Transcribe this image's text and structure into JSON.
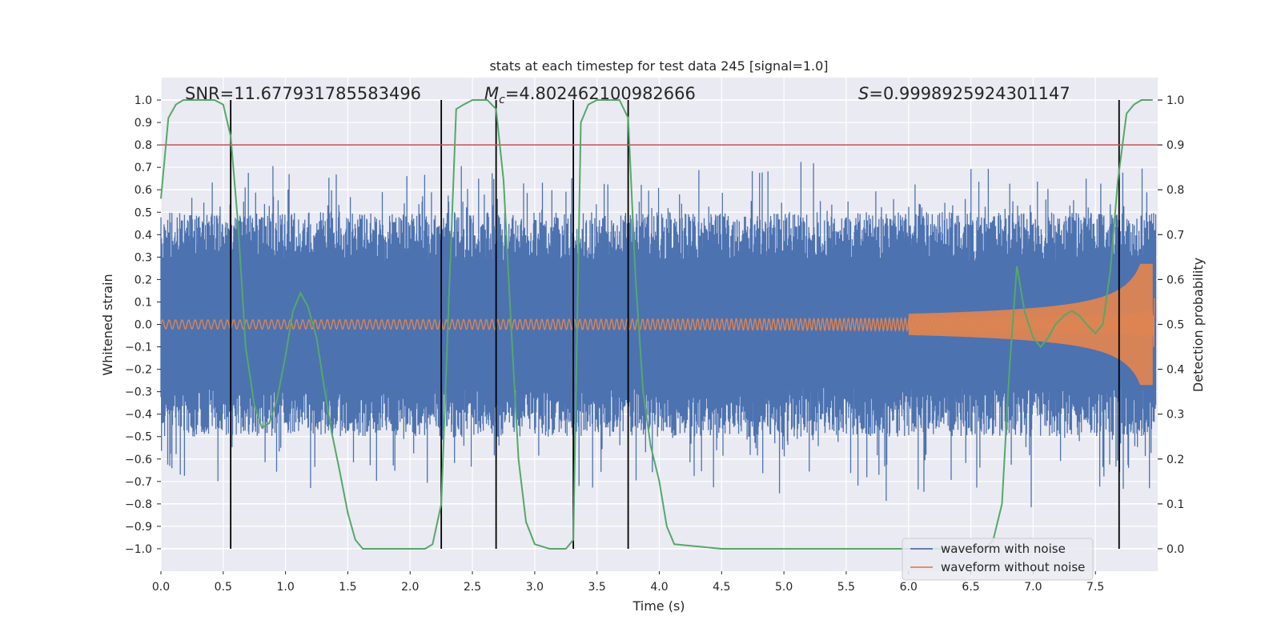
{
  "chart_data": {
    "type": "line",
    "title": "stats at each timestep for test data 245 [signal=1.0]",
    "xlabel": "Time (s)",
    "ylabel": "Whitened strain",
    "y2label": "Detection probability",
    "xlim": [
      0,
      8
    ],
    "ylim": [
      -1.1,
      1.1
    ],
    "y2lim": [
      -0.05,
      1.05
    ],
    "x_ticks": [
      "0.0",
      "0.5",
      "1.0",
      "1.5",
      "2.0",
      "2.5",
      "3.0",
      "3.5",
      "4.0",
      "4.5",
      "5.0",
      "5.5",
      "6.0",
      "6.5",
      "7.0",
      "7.5"
    ],
    "x_tick_values": [
      0,
      0.5,
      1,
      1.5,
      2,
      2.5,
      3,
      3.5,
      4,
      4.5,
      5,
      5.5,
      6,
      6.5,
      7,
      7.5
    ],
    "y_ticks": [
      "1.0",
      "0.9",
      "0.8",
      "0.7",
      "0.6",
      "0.5",
      "0.4",
      "0.3",
      "0.2",
      "0.1",
      "0.0",
      "−0.1",
      "−0.2",
      "−0.3",
      "−0.4",
      "−0.5",
      "−0.6",
      "−0.7",
      "−0.8",
      "−0.9",
      "−1.0"
    ],
    "y_tick_values": [
      1.0,
      0.9,
      0.8,
      0.7,
      0.6,
      0.5,
      0.4,
      0.3,
      0.2,
      0.1,
      0.0,
      -0.1,
      -0.2,
      -0.3,
      -0.4,
      -0.5,
      -0.6,
      -0.7,
      -0.8,
      -0.9,
      -1.0
    ],
    "y2_ticks": [
      "1.0",
      "0.9",
      "0.8",
      "0.7",
      "0.6",
      "0.5",
      "0.4",
      "0.3",
      "0.2",
      "0.1",
      "0.0"
    ],
    "y2_tick_values": [
      1.0,
      0.9,
      0.8,
      0.7,
      0.6,
      0.5,
      0.4,
      0.3,
      0.2,
      0.1,
      0.0
    ],
    "annotations": {
      "snr": "SNR=11.677931785583496",
      "mc_symbol": "M",
      "mc_sub": "c",
      "mc_value": "=4.802462100982666",
      "s_symbol": "S",
      "s_value": "=0.9998925924301147"
    },
    "threshold": 0.9,
    "vertical_lines_x": [
      0.56,
      2.25,
      2.69,
      3.31,
      3.75,
      7.69
    ],
    "detection_probability": {
      "x": [
        0.0,
        0.06,
        0.12,
        0.18,
        0.25,
        0.31,
        0.37,
        0.43,
        0.5,
        0.56,
        0.62,
        0.68,
        0.75,
        0.81,
        0.87,
        0.93,
        1.0,
        1.06,
        1.12,
        1.18,
        1.25,
        1.31,
        1.37,
        1.43,
        1.5,
        1.56,
        1.62,
        1.68,
        1.75,
        2.0,
        2.12,
        2.18,
        2.25,
        2.31,
        2.37,
        2.43,
        2.5,
        2.62,
        2.69,
        2.75,
        2.81,
        2.87,
        2.93,
        3.0,
        3.12,
        3.25,
        3.31,
        3.37,
        3.43,
        3.5,
        3.62,
        3.68,
        3.75,
        3.81,
        3.87,
        3.93,
        4.0,
        4.06,
        4.12,
        4.5,
        5.0,
        5.5,
        6.0,
        6.5,
        6.62,
        6.68,
        6.75,
        6.81,
        6.87,
        6.93,
        7.0,
        7.06,
        7.12,
        7.18,
        7.25,
        7.31,
        7.37,
        7.43,
        7.5,
        7.56,
        7.62,
        7.68,
        7.75,
        7.81,
        7.87,
        7.96
      ],
      "y": [
        0.78,
        0.96,
        0.99,
        1.0,
        1.0,
        1.0,
        1.0,
        1.0,
        0.99,
        0.92,
        0.72,
        0.45,
        0.32,
        0.27,
        0.28,
        0.33,
        0.43,
        0.53,
        0.57,
        0.54,
        0.47,
        0.36,
        0.26,
        0.18,
        0.08,
        0.02,
        0.0,
        0.0,
        0.0,
        0.0,
        0.0,
        0.01,
        0.1,
        0.55,
        0.98,
        0.99,
        1.0,
        1.0,
        0.98,
        0.82,
        0.5,
        0.2,
        0.06,
        0.01,
        0.0,
        0.0,
        0.02,
        0.95,
        0.99,
        1.0,
        1.0,
        1.0,
        0.96,
        0.6,
        0.35,
        0.23,
        0.15,
        0.05,
        0.01,
        0.0,
        0.0,
        0.0,
        0.0,
        0.0,
        0.0,
        0.02,
        0.1,
        0.4,
        0.63,
        0.53,
        0.47,
        0.45,
        0.47,
        0.5,
        0.52,
        0.53,
        0.52,
        0.5,
        0.48,
        0.5,
        0.62,
        0.82,
        0.97,
        0.99,
        1.0,
        1.0
      ]
    },
    "series": [
      {
        "name": "waveform with noise",
        "color": "#4c72b0"
      },
      {
        "name": "waveform without noise",
        "color": "#dd8452"
      },
      {
        "name": "detection probability",
        "color": "#55a868"
      }
    ],
    "threshold_color": "#c44e52",
    "legend": {
      "position": "lower-right",
      "entries": [
        "waveform with noise",
        "waveform without noise"
      ]
    }
  }
}
